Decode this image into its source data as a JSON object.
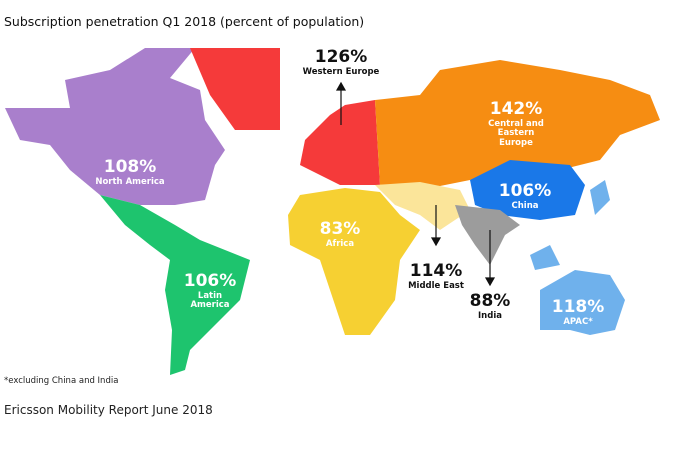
{
  "title": "Subscription penetration Q1 2018 (percent of population)",
  "footnote": "*excluding China and India",
  "source": "Ericsson Mobility Report June 2018",
  "regions": {
    "north_america": {
      "value": "108%",
      "name": "North America",
      "color": "#a97fcc"
    },
    "latin_america": {
      "value": "106%",
      "name": "Latin America",
      "color": "#1ec46e"
    },
    "western_europe": {
      "value": "126%",
      "name": "Western Europe",
      "color": "#f53a3a"
    },
    "central_eastern_europe": {
      "value": "142%",
      "name": "Central and Eastern Europe",
      "color": "#f68d12"
    },
    "africa": {
      "value": "83%",
      "name": "Africa",
      "color": "#f6d032"
    },
    "middle_east": {
      "value": "114%",
      "name": "Middle East",
      "color": "#fbe59a"
    },
    "china": {
      "value": "106%",
      "name": "China",
      "color": "#1a78e8"
    },
    "india": {
      "value": "88%",
      "name": "India",
      "color": "#9c9c9c"
    },
    "apac": {
      "value": "118%",
      "name": "APAC*",
      "color": "#6fb1ec"
    }
  }
}
